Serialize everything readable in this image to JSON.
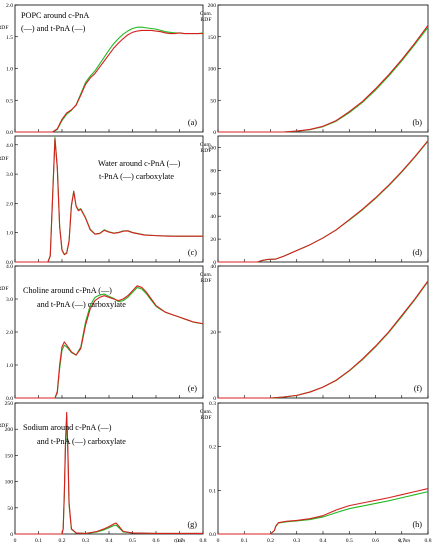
{
  "colors": {
    "cis": "#d62020",
    "trans": "#22b822"
  },
  "x_axis": {
    "label": "r, nm",
    "ticks": [
      "0",
      "0.1",
      "0.2",
      "0.3",
      "0.4",
      "0.5",
      "0.6",
      "0.7",
      "0.8"
    ]
  },
  "chart_data": [
    {
      "id": "a",
      "type": "line",
      "panel_label": "(a)",
      "ylabel": "RDF",
      "annotation": {
        "line1": "POPC around c-PnA",
        "line2": "(—) and t-PnA (—)"
      },
      "xlim": [
        0,
        0.8
      ],
      "ylim": [
        0,
        2.0
      ],
      "yticks": [
        "0.0",
        "0.5",
        "1.0",
        "1.5",
        "2.0"
      ],
      "ytick_values": [
        0,
        0.5,
        1.0,
        1.5,
        2.0
      ],
      "show_x_ticklabels": false,
      "series": [
        {
          "key": "cis",
          "x": [
            0,
            0.16,
            0.18,
            0.2,
            0.22,
            0.24,
            0.26,
            0.28,
            0.3,
            0.32,
            0.34,
            0.36,
            0.38,
            0.4,
            0.42,
            0.44,
            0.46,
            0.48,
            0.5,
            0.52,
            0.54,
            0.56,
            0.58,
            0.6,
            0.62,
            0.64,
            0.66,
            0.68,
            0.7,
            0.72,
            0.74,
            0.76,
            0.78,
            0.8
          ],
          "y": [
            0,
            0,
            0.05,
            0.2,
            0.3,
            0.35,
            0.42,
            0.58,
            0.75,
            0.85,
            0.92,
            1.02,
            1.12,
            1.22,
            1.32,
            1.4,
            1.47,
            1.53,
            1.57,
            1.59,
            1.6,
            1.6,
            1.6,
            1.59,
            1.58,
            1.56,
            1.55,
            1.55,
            1.56,
            1.55,
            1.55,
            1.55,
            1.55,
            1.55
          ]
        },
        {
          "key": "trans",
          "x": [
            0,
            0.16,
            0.18,
            0.2,
            0.22,
            0.24,
            0.26,
            0.28,
            0.3,
            0.32,
            0.34,
            0.36,
            0.38,
            0.4,
            0.42,
            0.44,
            0.46,
            0.48,
            0.5,
            0.52,
            0.54,
            0.56,
            0.58,
            0.6,
            0.62,
            0.64,
            0.66,
            0.68,
            0.7,
            0.72,
            0.74,
            0.76,
            0.78,
            0.8
          ],
          "y": [
            0,
            0,
            0.04,
            0.18,
            0.28,
            0.34,
            0.43,
            0.6,
            0.78,
            0.88,
            0.96,
            1.07,
            1.18,
            1.29,
            1.39,
            1.47,
            1.54,
            1.59,
            1.63,
            1.65,
            1.65,
            1.64,
            1.63,
            1.62,
            1.6,
            1.58,
            1.57,
            1.56,
            1.56,
            1.55,
            1.55,
            1.55,
            1.55,
            1.56
          ]
        }
      ]
    },
    {
      "id": "b",
      "type": "line",
      "panel_label": "(b)",
      "ylabel": "Cum. RDF",
      "xlim": [
        0,
        0.8
      ],
      "ylim": [
        0,
        200
      ],
      "yticks": [
        "0",
        "50",
        "100",
        "150",
        "200"
      ],
      "ytick_values": [
        0,
        50,
        100,
        150,
        200
      ],
      "show_x_ticklabels": false,
      "series": [
        {
          "key": "cis",
          "x": [
            0,
            0.25,
            0.3,
            0.35,
            0.4,
            0.45,
            0.5,
            0.55,
            0.6,
            0.65,
            0.7,
            0.75,
            0.8
          ],
          "y": [
            0,
            0,
            1.5,
            4,
            9,
            18,
            32,
            48,
            68,
            90,
            114,
            140,
            168
          ]
        },
        {
          "key": "trans",
          "x": [
            0,
            0.25,
            0.3,
            0.35,
            0.4,
            0.45,
            0.5,
            0.55,
            0.6,
            0.65,
            0.7,
            0.75,
            0.8
          ],
          "y": [
            0,
            0,
            1.3,
            3.6,
            8.4,
            17,
            30.5,
            46.5,
            66,
            88,
            112,
            138,
            165
          ]
        }
      ]
    },
    {
      "id": "c",
      "type": "line",
      "panel_label": "(c)",
      "ylabel": "RDF",
      "annotation": {
        "line1": "Water around c-PnA (—)",
        "line2": "t-PnA (—) carboxylate"
      },
      "xlim": [
        0,
        0.8
      ],
      "ylim": [
        0,
        4.3
      ],
      "yticks": [
        "0.0",
        "1.0",
        "2.0",
        "3.0",
        "4.0"
      ],
      "ytick_values": [
        0,
        1,
        2,
        3,
        4
      ],
      "show_x_ticklabels": false,
      "series": [
        {
          "key": "cis",
          "x": [
            0,
            0.14,
            0.15,
            0.16,
            0.17,
            0.18,
            0.19,
            0.2,
            0.21,
            0.22,
            0.23,
            0.24,
            0.25,
            0.26,
            0.27,
            0.28,
            0.3,
            0.32,
            0.34,
            0.36,
            0.38,
            0.4,
            0.42,
            0.44,
            0.46,
            0.48,
            0.5,
            0.55,
            0.6,
            0.65,
            0.7,
            0.75,
            0.8
          ],
          "y": [
            0,
            0,
            0.2,
            2.2,
            4.2,
            3.2,
            1.2,
            0.4,
            0.25,
            0.3,
            0.7,
            1.9,
            2.4,
            1.9,
            1.75,
            1.8,
            1.5,
            1.1,
            0.95,
            0.97,
            1.08,
            1.02,
            0.98,
            1.0,
            1.05,
            1.06,
            1.0,
            0.92,
            0.9,
            0.88,
            0.88,
            0.88,
            0.88
          ]
        },
        {
          "key": "trans",
          "x": [
            0,
            0.14,
            0.15,
            0.16,
            0.17,
            0.18,
            0.19,
            0.2,
            0.21,
            0.22,
            0.23,
            0.24,
            0.25,
            0.26,
            0.27,
            0.28,
            0.3,
            0.32,
            0.34,
            0.36,
            0.38,
            0.4,
            0.42,
            0.44,
            0.46,
            0.48,
            0.5,
            0.55,
            0.6,
            0.65,
            0.7,
            0.75,
            0.8
          ],
          "y": [
            0,
            0,
            0.22,
            2.25,
            4.25,
            3.25,
            1.22,
            0.42,
            0.26,
            0.32,
            0.72,
            1.95,
            2.42,
            1.92,
            1.78,
            1.82,
            1.52,
            1.12,
            0.96,
            0.98,
            1.1,
            1.03,
            0.99,
            1.01,
            1.06,
            1.07,
            1.01,
            0.93,
            0.9,
            0.89,
            0.88,
            0.88,
            0.88
          ]
        }
      ]
    },
    {
      "id": "d",
      "type": "line",
      "panel_label": "(d)",
      "ylabel": "Cum. RDF",
      "xlim": [
        0,
        0.8
      ],
      "ylim": [
        0,
        110
      ],
      "yticks": [
        "0",
        "20",
        "40",
        "60",
        "80",
        "100"
      ],
      "ytick_values": [
        0,
        20,
        40,
        60,
        80,
        100
      ],
      "show_x_ticklabels": false,
      "series": [
        {
          "key": "cis",
          "x": [
            0,
            0.15,
            0.17,
            0.19,
            0.22,
            0.25,
            0.3,
            0.35,
            0.4,
            0.45,
            0.5,
            0.55,
            0.6,
            0.65,
            0.7,
            0.75,
            0.8
          ],
          "y": [
            0,
            0,
            1.5,
            2.3,
            2.6,
            5,
            10,
            15,
            21,
            28,
            37,
            46,
            56,
            67,
            79,
            92,
            106
          ]
        },
        {
          "key": "trans",
          "x": [
            0,
            0.15,
            0.17,
            0.19,
            0.22,
            0.25,
            0.3,
            0.35,
            0.4,
            0.45,
            0.5,
            0.55,
            0.6,
            0.65,
            0.7,
            0.75,
            0.8
          ],
          "y": [
            0,
            0,
            1.4,
            2.2,
            2.5,
            5,
            10,
            15,
            21,
            28,
            36.5,
            45.5,
            55.5,
            66.5,
            78.5,
            91.5,
            105.5
          ]
        }
      ]
    },
    {
      "id": "e",
      "type": "line",
      "panel_label": "(e)",
      "ylabel": "RDF",
      "annotation": {
        "line1": "Choline around c-PnA (—)",
        "line2": "and t-PnA (—) carboxylate"
      },
      "xlim": [
        0,
        0.8
      ],
      "ylim": [
        0,
        4.0
      ],
      "yticks": [
        "0.0",
        "1.0",
        "2.0",
        "3.0",
        "4.0"
      ],
      "ytick_values": [
        0,
        1,
        2,
        3,
        4
      ],
      "show_x_ticklabels": false,
      "series": [
        {
          "key": "cis",
          "x": [
            0,
            0.17,
            0.18,
            0.19,
            0.2,
            0.21,
            0.22,
            0.24,
            0.26,
            0.28,
            0.3,
            0.32,
            0.34,
            0.36,
            0.38,
            0.4,
            0.42,
            0.44,
            0.46,
            0.48,
            0.5,
            0.52,
            0.54,
            0.56,
            0.58,
            0.6,
            0.62,
            0.64,
            0.66,
            0.68,
            0.7,
            0.72,
            0.74,
            0.76,
            0.78,
            0.8
          ],
          "y": [
            0,
            0,
            0.2,
            1.0,
            1.55,
            1.7,
            1.6,
            1.4,
            1.3,
            1.5,
            2.2,
            2.7,
            2.95,
            3.05,
            3.1,
            3.05,
            3.0,
            2.95,
            3.0,
            3.1,
            3.25,
            3.4,
            3.35,
            3.2,
            3.0,
            2.8,
            2.7,
            2.6,
            2.55,
            2.5,
            2.45,
            2.4,
            2.35,
            2.3,
            2.28,
            2.25
          ]
        },
        {
          "key": "trans",
          "x": [
            0,
            0.17,
            0.18,
            0.19,
            0.2,
            0.21,
            0.22,
            0.24,
            0.26,
            0.28,
            0.3,
            0.32,
            0.34,
            0.36,
            0.38,
            0.4,
            0.42,
            0.44,
            0.46,
            0.48,
            0.5,
            0.52,
            0.54,
            0.56,
            0.58,
            0.6,
            0.62,
            0.64,
            0.66,
            0.68,
            0.7,
            0.72,
            0.74,
            0.76,
            0.78,
            0.8
          ],
          "y": [
            0,
            0,
            0.15,
            0.9,
            1.45,
            1.6,
            1.55,
            1.38,
            1.3,
            1.55,
            2.3,
            2.8,
            3.05,
            3.12,
            3.15,
            3.08,
            3.02,
            2.92,
            2.95,
            3.05,
            3.2,
            3.35,
            3.3,
            3.15,
            2.96,
            2.78,
            2.68,
            2.6,
            2.55,
            2.5,
            2.45,
            2.4,
            2.35,
            2.3,
            2.27,
            2.25
          ]
        }
      ]
    },
    {
      "id": "f",
      "type": "line",
      "panel_label": "(f)",
      "ylabel": "Cum. RDF",
      "xlim": [
        0,
        0.8
      ],
      "ylim": [
        0,
        40
      ],
      "yticks": [
        "0",
        "20",
        "40"
      ],
      "ytick_values": [
        0,
        20,
        40
      ],
      "show_x_ticklabels": false,
      "series": [
        {
          "key": "cis",
          "x": [
            0,
            0.2,
            0.25,
            0.3,
            0.35,
            0.4,
            0.45,
            0.5,
            0.55,
            0.6,
            0.65,
            0.7,
            0.75,
            0.8
          ],
          "y": [
            0,
            0,
            0.3,
            0.8,
            1.8,
            3.3,
            5.4,
            8.3,
            11.8,
            15.7,
            20,
            25,
            30,
            35.5
          ]
        },
        {
          "key": "trans",
          "x": [
            0,
            0.2,
            0.25,
            0.3,
            0.35,
            0.4,
            0.45,
            0.5,
            0.55,
            0.6,
            0.65,
            0.7,
            0.75,
            0.8
          ],
          "y": [
            0,
            0,
            0.28,
            0.78,
            1.8,
            3.3,
            5.3,
            8.2,
            11.6,
            15.5,
            19.8,
            24.7,
            29.8,
            35.3
          ]
        }
      ]
    },
    {
      "id": "g",
      "type": "line",
      "panel_label": "(g)",
      "ylabel": "RDF",
      "annotation": {
        "line1": "Sodium around c-PnA (—)",
        "line2": "and t-PnA (—) carboxylate"
      },
      "xlim": [
        0,
        0.8
      ],
      "ylim": [
        0,
        250
      ],
      "yticks": [
        "0",
        "50",
        "100",
        "150",
        "200",
        "250"
      ],
      "ytick_values": [
        0,
        50,
        100,
        150,
        200,
        250
      ],
      "show_x_ticklabels": true,
      "series": [
        {
          "key": "cis",
          "x": [
            0,
            0.2,
            0.205,
            0.21,
            0.215,
            0.22,
            0.225,
            0.23,
            0.24,
            0.26,
            0.3,
            0.35,
            0.38,
            0.4,
            0.42,
            0.43,
            0.44,
            0.46,
            0.5,
            0.6,
            0.7,
            0.8
          ],
          "y": [
            0,
            0,
            10,
            80,
            180,
            232,
            160,
            60,
            10,
            2,
            1,
            5,
            10,
            14,
            19,
            21,
            16,
            5,
            2,
            1,
            1,
            1
          ]
        },
        {
          "key": "trans",
          "x": [
            0,
            0.2,
            0.205,
            0.21,
            0.215,
            0.22,
            0.225,
            0.23,
            0.24,
            0.26,
            0.3,
            0.35,
            0.38,
            0.4,
            0.42,
            0.43,
            0.44,
            0.46,
            0.5,
            0.6,
            0.7,
            0.8
          ],
          "y": [
            0,
            0,
            9,
            75,
            170,
            222,
            152,
            56,
            9,
            2,
            1,
            4,
            8,
            12,
            16,
            17,
            13,
            4,
            2,
            1,
            1,
            1
          ]
        }
      ]
    },
    {
      "id": "h",
      "type": "line",
      "panel_label": "(h)",
      "ylabel": "Cum. RDF",
      "xlim": [
        0,
        0.8
      ],
      "ylim": [
        0,
        0.3
      ],
      "yticks": [
        "0.0",
        "0.1",
        "0.2",
        "0.3"
      ],
      "ytick_values": [
        0,
        0.1,
        0.2,
        0.3
      ],
      "show_x_ticklabels": true,
      "series": [
        {
          "key": "cis",
          "x": [
            0,
            0.2,
            0.215,
            0.22,
            0.23,
            0.26,
            0.3,
            0.35,
            0.4,
            0.45,
            0.5,
            0.55,
            0.6,
            0.65,
            0.7,
            0.75,
            0.8
          ],
          "y": [
            0,
            0,
            0.008,
            0.018,
            0.026,
            0.029,
            0.031,
            0.035,
            0.042,
            0.055,
            0.065,
            0.071,
            0.077,
            0.083,
            0.09,
            0.097,
            0.104
          ]
        },
        {
          "key": "trans",
          "x": [
            0,
            0.2,
            0.215,
            0.22,
            0.23,
            0.26,
            0.3,
            0.35,
            0.4,
            0.45,
            0.5,
            0.55,
            0.6,
            0.65,
            0.7,
            0.75,
            0.8
          ],
          "y": [
            0,
            0,
            0.008,
            0.017,
            0.025,
            0.028,
            0.03,
            0.033,
            0.039,
            0.049,
            0.058,
            0.064,
            0.07,
            0.076,
            0.083,
            0.09,
            0.097
          ]
        }
      ]
    }
  ]
}
